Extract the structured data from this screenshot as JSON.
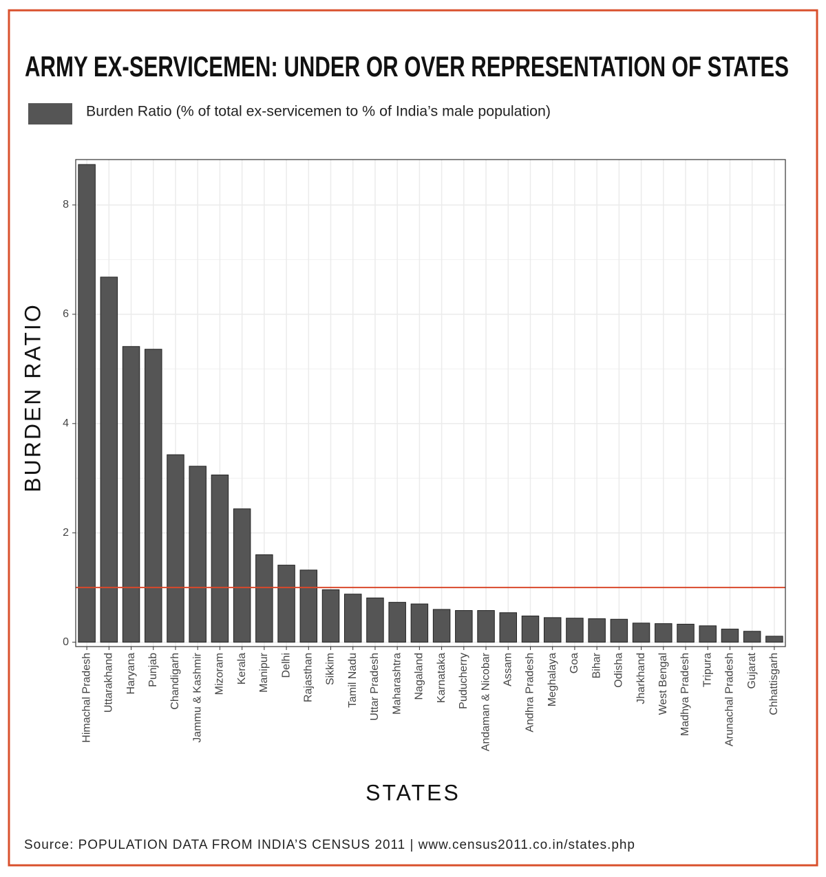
{
  "chart_data": {
    "type": "bar",
    "title": "ARMY EX-SERVICEMEN: UNDER OR OVER REPRESENTATION OF STATES",
    "legend": "Burden Ratio (% of total ex-servicemen to % of India’s male population)",
    "x_label": "STATES",
    "y_label": "BURDEN RATIO",
    "source": "Source: POPULATION DATA FROM INDIA’S CENSUS 2011 | www.census2011.co.in/states.php",
    "categories": [
      "Himachal Pradesh",
      "Uttarakhand",
      "Haryana",
      "Punjab",
      "Chandigarh",
      "Jammu & Kashmir",
      "Mizoram",
      "Kerala",
      "Manipur",
      "Delhi",
      "Rajasthan",
      "Sikkim",
      "Tamil Nadu",
      "Uttar Pradesh",
      "Maharashtra",
      "Nagaland",
      "Karnataka",
      "Puducherry",
      "Andaman & Nicobar",
      "Assam",
      "Andhra Pradesh",
      "Meghalaya",
      "Goa",
      "Bihar",
      "Odisha",
      "Jharkhand",
      "West Bengal",
      "Madhya Pradesh",
      "Tripura",
      "Arunachal Pradesh",
      "Gujarat",
      "Chhattisgarh"
    ],
    "values": [
      8.74,
      6.68,
      5.41,
      5.36,
      3.43,
      3.22,
      3.06,
      2.44,
      1.6,
      1.41,
      1.32,
      0.96,
      0.88,
      0.81,
      0.73,
      0.7,
      0.6,
      0.58,
      0.58,
      0.54,
      0.48,
      0.45,
      0.44,
      0.43,
      0.42,
      0.35,
      0.34,
      0.33,
      0.3,
      0.24,
      0.2,
      0.11
    ],
    "color": "#555555",
    "reference_line": 1,
    "reference_color": "#d9482b",
    "ylim": [
      -0.08,
      8.83
    ],
    "yticks": [
      0,
      2,
      4,
      6,
      8
    ],
    "grid": true
  }
}
